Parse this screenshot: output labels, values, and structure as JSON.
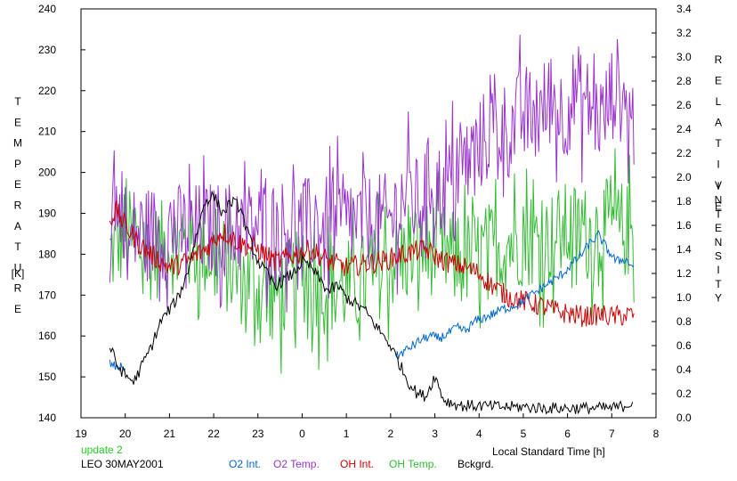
{
  "chart_data": {
    "type": "line",
    "xlabel": "Local Standard Time [h]",
    "ylabel_left": "TEMPERATURE [K]",
    "ylabel_left_letters": [
      "T",
      "E",
      "M",
      "P",
      "E",
      "R",
      "A",
      "T",
      "U",
      "R",
      "E"
    ],
    "ylabel_left_unit": "[K]",
    "ylabel_right": "RELATIVE INTENSITY",
    "ylabel_right_word1": [
      "R",
      "E",
      "L",
      "A",
      "T",
      "I",
      "V",
      "E"
    ],
    "ylabel_right_word2": [
      "I",
      "N",
      "T",
      "E",
      "N",
      "S",
      "I",
      "T",
      "Y"
    ],
    "x_ticks": [
      19,
      20,
      21,
      22,
      23,
      24,
      25,
      26,
      27,
      28,
      29,
      30,
      31,
      32
    ],
    "x_tick_labels": [
      "19",
      "20",
      "21",
      "22",
      "23",
      "0",
      "1",
      "2",
      "3",
      "4",
      "5",
      "6",
      "7",
      "8"
    ],
    "xlim": [
      19,
      32
    ],
    "ylim_left": [
      140,
      240
    ],
    "y_ticks_left": [
      140,
      150,
      160,
      170,
      180,
      190,
      200,
      210,
      220,
      230,
      240
    ],
    "ylim_right": [
      0.0,
      3.4
    ],
    "y_ticks_right": [
      "0.0",
      "0.2",
      "0.4",
      "0.6",
      "0.8",
      "1.0",
      "1.2",
      "1.4",
      "1.6",
      "1.8",
      "2.0",
      "2.2",
      "2.4",
      "2.6",
      "2.8",
      "3.0",
      "3.2",
      "3.4"
    ],
    "grid": false,
    "footer": {
      "update": "update 2",
      "site_date": "LEO 30MAY2001"
    },
    "legend": [
      {
        "label": "O2 Int.",
        "color": "#0066cc"
      },
      {
        "label": "O2 Temp.",
        "color": "#9933cc"
      },
      {
        "label": "OH Int.",
        "color": "#cc0000"
      },
      {
        "label": "OH Temp.",
        "color": "#33bb33"
      },
      {
        "label": "Bckgrd.",
        "color": "#000000"
      }
    ],
    "series": [
      {
        "name": "O2 Int.",
        "axis": "right",
        "color": "#0066cc",
        "x": [
          19.65,
          19.8,
          20.0,
          20.5,
          21.0,
          21.5,
          22.0,
          22.5,
          23.0,
          23.5,
          24.0,
          24.5,
          25.0,
          25.5,
          25.9,
          26.1,
          26.3,
          26.5,
          26.7,
          26.9,
          27.1,
          27.3,
          27.5,
          27.7,
          27.9,
          28.1,
          28.3,
          28.5,
          28.7,
          28.9,
          29.1,
          29.3,
          29.5,
          29.7,
          29.9,
          30.1,
          30.3,
          30.5,
          30.7,
          30.9,
          31.1,
          31.3,
          31.5
        ],
        "y": [
          0.45,
          0.42,
          0.42,
          null,
          null,
          null,
          null,
          null,
          null,
          null,
          null,
          null,
          null,
          null,
          null,
          0.5,
          0.55,
          0.6,
          0.65,
          0.68,
          0.66,
          0.7,
          0.75,
          0.72,
          0.8,
          0.83,
          0.86,
          0.9,
          0.92,
          0.95,
          1.0,
          1.05,
          1.1,
          1.15,
          1.2,
          1.28,
          1.35,
          1.45,
          1.52,
          1.4,
          1.3,
          1.32,
          1.25
        ]
      },
      {
        "name": "O2 Temp.",
        "axis": "left",
        "x": [
          19.65,
          19.75,
          19.85,
          19.95,
          20.05,
          20.15,
          26.0,
          26.3,
          26.6,
          26.9,
          27.2,
          27.5,
          27.8,
          28.1,
          28.4,
          28.7,
          29.0,
          29.3,
          29.6,
          29.9,
          30.2,
          30.5,
          30.8,
          31.1,
          31.3,
          31.5
        ],
        "y": [
          180,
          200,
          185,
          195,
          178,
          185,
          188,
          195,
          192,
          198,
          195,
          200,
          203,
          208,
          212,
          210,
          215,
          213,
          218,
          214,
          220,
          216,
          213,
          222,
          216,
          212
        ]
      },
      {
        "name": "OH Int.",
        "axis": "right",
        "x": [
          19.65,
          19.8,
          20.0,
          20.3,
          20.6,
          21.0,
          21.4,
          21.8,
          22.2,
          22.6,
          23.0,
          23.4,
          23.8,
          24.2,
          24.6,
          25.0,
          25.4,
          25.8,
          26.2,
          26.5,
          26.8,
          27.1,
          27.4,
          27.7,
          28.0,
          28.3,
          28.6,
          28.9,
          29.2,
          29.5,
          29.8,
          30.1,
          30.4,
          30.7,
          31.0,
          31.3,
          31.5
        ],
        "y": [
          1.65,
          1.72,
          1.6,
          1.45,
          1.35,
          1.25,
          1.3,
          1.4,
          1.55,
          1.45,
          1.4,
          1.3,
          1.35,
          1.4,
          1.3,
          1.25,
          1.28,
          1.3,
          1.35,
          1.38,
          1.4,
          1.32,
          1.28,
          1.25,
          1.2,
          1.1,
          1.02,
          0.98,
          0.95,
          0.92,
          0.88,
          0.86,
          0.84,
          0.86,
          0.84,
          0.85,
          0.86
        ]
      },
      {
        "name": "OH Temp.",
        "axis": "left",
        "x": [
          19.65,
          20.0,
          20.5,
          21.0,
          21.5,
          22.0,
          22.5,
          23.0,
          23.5,
          24.0,
          24.5,
          25.0,
          25.5,
          26.0,
          26.5,
          27.0,
          27.5,
          28.0,
          28.5,
          29.0,
          29.5,
          30.0,
          30.5,
          31.0,
          31.5
        ],
        "y": [
          180,
          185,
          180,
          182,
          182,
          180,
          175,
          172,
          170,
          175,
          172,
          172,
          174,
          178,
          180,
          182,
          178,
          180,
          182,
          184,
          183,
          186,
          185,
          187,
          185
        ]
      },
      {
        "name": "Bckgrd.",
        "axis": "right",
        "x": [
          19.65,
          19.8,
          20.0,
          20.2,
          20.4,
          20.6,
          20.8,
          21.0,
          21.2,
          21.4,
          21.6,
          21.8,
          22.0,
          22.2,
          22.4,
          22.6,
          22.8,
          23.0,
          23.2,
          23.4,
          23.6,
          23.8,
          24.0,
          24.2,
          24.4,
          24.6,
          24.8,
          25.0,
          25.2,
          25.4,
          25.6,
          25.8,
          26.0,
          26.2,
          26.4,
          26.6,
          26.8,
          27.0,
          27.2,
          27.4,
          27.6,
          27.8,
          28.0,
          28.5,
          29.0,
          29.5,
          30.0,
          30.5,
          31.0,
          31.3,
          31.5
        ],
        "y": [
          0.6,
          0.45,
          0.35,
          0.3,
          0.45,
          0.6,
          0.8,
          0.9,
          1.0,
          1.2,
          1.5,
          1.8,
          1.85,
          1.7,
          1.8,
          1.75,
          1.5,
          1.3,
          1.2,
          1.1,
          1.15,
          1.2,
          1.3,
          1.25,
          1.15,
          1.05,
          1.1,
          1.0,
          0.95,
          0.9,
          0.8,
          0.7,
          0.6,
          0.45,
          0.3,
          0.2,
          0.18,
          0.35,
          0.15,
          0.12,
          0.1,
          0.1,
          0.1,
          0.09,
          0.09,
          0.08,
          0.08,
          0.08,
          0.08,
          0.1,
          0.14
        ]
      }
    ]
  }
}
